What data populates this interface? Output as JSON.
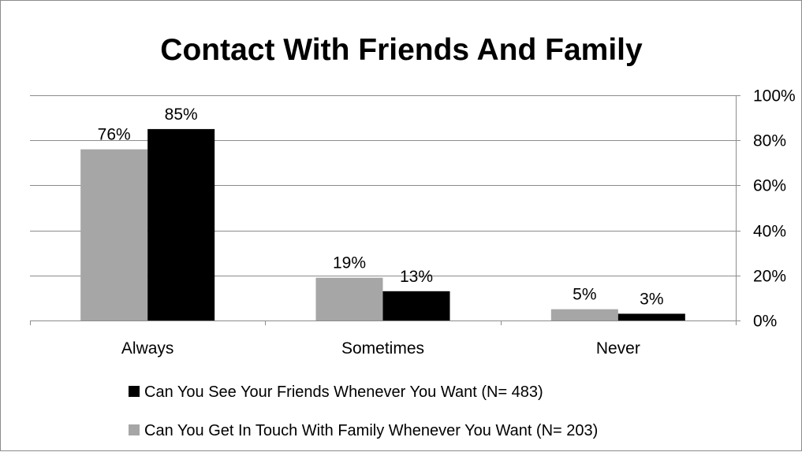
{
  "chart_data": {
    "type": "bar",
    "title": "Contact With Friends And Family",
    "categories": [
      "Always",
      "Sometimes",
      "Never"
    ],
    "series": [
      {
        "name": "Can You Get In Touch With Family Whenever You Want (N= 203)",
        "values": [
          76,
          19,
          5
        ],
        "labels": [
          "76%",
          "19%",
          "5%"
        ],
        "color": "#a6a6a6"
      },
      {
        "name": "Can You See Your Friends Whenever You Want (N= 483)",
        "values": [
          85,
          13,
          3
        ],
        "labels": [
          "85%",
          "13%",
          "3%"
        ],
        "color": "#000000"
      }
    ],
    "ylim": [
      0,
      100
    ],
    "yticks": [
      {
        "value": 0,
        "label": "0%"
      },
      {
        "value": 20,
        "label": "20%"
      },
      {
        "value": 40,
        "label": "40%"
      },
      {
        "value": 60,
        "label": "60%"
      },
      {
        "value": 80,
        "label": "80%"
      },
      {
        "value": 100,
        "label": "100%"
      }
    ],
    "y_axis_side": "right",
    "grid": true,
    "gridline_color": "#8c8c8c",
    "legend_position": "bottom",
    "legend_order": [
      1,
      0
    ]
  }
}
